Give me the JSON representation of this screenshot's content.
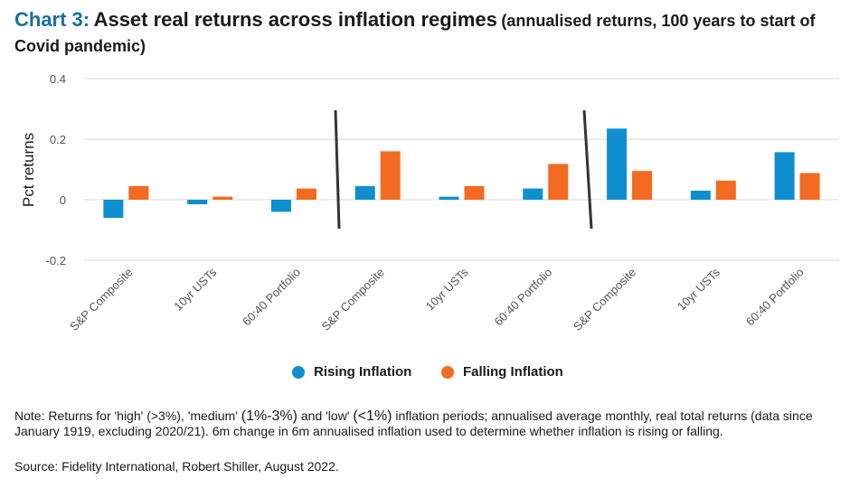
{
  "title": {
    "label": "Chart 3:",
    "main": "Asset real returns across inflation regimes",
    "sub": "(annualised returns, 100 years to start of Covid pandemic)"
  },
  "chart_data": {
    "type": "bar",
    "categories": [
      "S&P Composite",
      "10yr USTs",
      "60:40 Portfolio",
      "S&P Composite",
      "10yr USTs",
      "60:40 Portfolio",
      "S&P Composite",
      "10yr USTs",
      "60:40 Portfolio"
    ],
    "series": [
      {
        "name": "Rising Inflation",
        "color": "#0f8fd0",
        "values": [
          -0.06,
          -0.015,
          -0.04,
          0.045,
          0.01,
          0.037,
          0.235,
          0.03,
          0.157
        ]
      },
      {
        "name": "Falling Inflation",
        "color": "#f26b21",
        "values": [
          0.045,
          0.01,
          0.037,
          0.16,
          0.045,
          0.118,
          0.095,
          0.063,
          0.088
        ]
      }
    ],
    "ylabel": "Pct returns",
    "ylim": [
      -0.2,
      0.4
    ],
    "yticks": [
      0.4,
      0.2,
      0,
      -0.2
    ],
    "ytick_labels": [
      "0.4",
      "0.2",
      "0",
      "-0.2"
    ],
    "grid": true,
    "legend_position": "bottom",
    "group_separators": true
  },
  "note": {
    "p1": "Note: Returns for 'high' (>3%), 'medium' ",
    "p2": "(1%-3%)",
    "p3": " and 'low' ",
    "p4": "(<1%)",
    "p5": " inflation periods; annualised average monthly, real total returns (data since January 1919, excluding 2020/21). 6m change in 6m annualised inflation used to determine whether inflation is rising or falling."
  },
  "source": "Source: Fidelity International, Robert Shiller, August 2022."
}
